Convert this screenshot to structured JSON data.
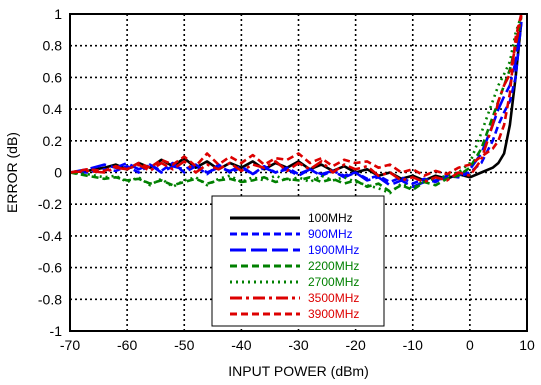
{
  "chart_data": {
    "type": "line",
    "title": "",
    "xlabel": "INPUT POWER (dBm)",
    "ylabel": "ERROR (dB)",
    "xlim": [
      -70,
      10
    ],
    "ylim": [
      -1,
      1
    ],
    "grid": true,
    "legend_position": "bottom-right",
    "x_ticks": [
      "-70",
      "-60",
      "-50",
      "-40",
      "-30",
      "-20",
      "-10",
      "0",
      "10"
    ],
    "y_ticks": [
      "1",
      "0.8",
      "0.6",
      "0.4",
      "0.2",
      "0",
      "-0.2",
      "-0.4",
      "-0.6",
      "-0.8",
      "-1"
    ],
    "series": [
      {
        "name": "100MHz",
        "color": "#000000",
        "dash": "solid",
        "x": [
          -70,
          -67,
          -64,
          -62,
          -60,
          -58,
          -56,
          -54,
          -52,
          -50,
          -48,
          -46,
          -44,
          -42,
          -40,
          -38,
          -36,
          -34,
          -32,
          -30,
          -28,
          -26,
          -24,
          -22,
          -20,
          -18,
          -16,
          -14,
          -12,
          -10,
          -8,
          -6,
          -4,
          -2,
          0,
          2,
          4,
          5,
          6,
          7,
          8,
          9
        ],
        "y": [
          0,
          0.01,
          0.03,
          0.05,
          0.02,
          0.06,
          0.03,
          0.08,
          0.04,
          0.09,
          0.03,
          0.07,
          0.02,
          0.06,
          0.03,
          0.07,
          0.02,
          0.06,
          0.03,
          0.07,
          0.02,
          0.05,
          0.01,
          0.04,
          0.0,
          0.02,
          -0.02,
          0.0,
          -0.04,
          -0.02,
          -0.05,
          -0.02,
          -0.04,
          -0.01,
          -0.03,
          0.0,
          0.03,
          0.06,
          0.12,
          0.3,
          0.6,
          0.95
        ]
      },
      {
        "name": "900MHz",
        "color": "#0000ff",
        "dash": "dash",
        "x": [
          -70,
          -67,
          -64,
          -62,
          -60,
          -58,
          -56,
          -54,
          -52,
          -50,
          -48,
          -46,
          -44,
          -42,
          -40,
          -38,
          -36,
          -34,
          -32,
          -30,
          -28,
          -26,
          -24,
          -22,
          -20,
          -18,
          -16,
          -14,
          -12,
          -10,
          -8,
          -6,
          -4,
          -2,
          0,
          2,
          4,
          5,
          6,
          7,
          8,
          9
        ],
        "y": [
          0,
          0.0,
          0.02,
          0.01,
          0.04,
          0.0,
          0.05,
          0.01,
          0.06,
          0.0,
          0.04,
          -0.01,
          0.05,
          0.0,
          0.03,
          -0.01,
          0.04,
          0.0,
          0.03,
          -0.01,
          0.02,
          -0.02,
          0.01,
          -0.02,
          0.0,
          -0.04,
          -0.02,
          -0.06,
          -0.03,
          -0.07,
          -0.04,
          -0.06,
          -0.02,
          -0.03,
          0.0,
          0.06,
          0.2,
          0.3,
          0.38,
          0.45,
          0.6,
          0.95
        ]
      },
      {
        "name": "1900MHz",
        "color": "#0000ff",
        "dash": "longdash",
        "x": [
          -70,
          -67,
          -64,
          -62,
          -60,
          -58,
          -56,
          -54,
          -52,
          -50,
          -48,
          -46,
          -44,
          -42,
          -40,
          -38,
          -36,
          -34,
          -32,
          -30,
          -28,
          -26,
          -24,
          -22,
          -20,
          -18,
          -16,
          -14,
          -12,
          -10,
          -8,
          -6,
          -4,
          -2,
          0,
          2,
          4,
          5,
          6,
          7,
          8,
          9
        ],
        "y": [
          0,
          0.02,
          0.05,
          0.03,
          0.06,
          0.02,
          0.05,
          0.0,
          0.04,
          0.02,
          0.05,
          0.0,
          0.03,
          0.01,
          0.04,
          -0.01,
          0.03,
          0.0,
          0.02,
          -0.02,
          0.02,
          -0.01,
          0.01,
          -0.03,
          0.0,
          -0.05,
          -0.03,
          -0.08,
          -0.05,
          -0.09,
          -0.06,
          -0.05,
          -0.03,
          -0.02,
          0.02,
          0.12,
          0.3,
          0.4,
          0.48,
          0.55,
          0.7,
          0.95
        ]
      },
      {
        "name": "2200MHz",
        "color": "#008000",
        "dash": "dash",
        "x": [
          -70,
          -67,
          -64,
          -62,
          -60,
          -58,
          -56,
          -54,
          -52,
          -50,
          -48,
          -46,
          -44,
          -42,
          -40,
          -38,
          -36,
          -34,
          -32,
          -30,
          -28,
          -26,
          -24,
          -22,
          -20,
          -18,
          -16,
          -14,
          -12,
          -10,
          -8,
          -6,
          -4,
          -2,
          0,
          2,
          4,
          5,
          6,
          7,
          8,
          9
        ],
        "y": [
          0,
          -0.02,
          -0.04,
          -0.03,
          -0.05,
          -0.04,
          -0.07,
          -0.05,
          -0.08,
          -0.06,
          -0.04,
          -0.07,
          -0.05,
          -0.04,
          -0.06,
          -0.05,
          -0.03,
          -0.06,
          -0.04,
          -0.05,
          -0.03,
          -0.06,
          -0.04,
          -0.07,
          -0.05,
          -0.09,
          -0.07,
          -0.12,
          -0.08,
          -0.11,
          -0.06,
          -0.08,
          -0.04,
          -0.02,
          0.03,
          0.15,
          0.35,
          0.45,
          0.55,
          0.65,
          0.8,
          0.98
        ]
      },
      {
        "name": "2700MHz",
        "color": "#008000",
        "dash": "dot",
        "x": [
          -70,
          -67,
          -64,
          -62,
          -60,
          -58,
          -56,
          -54,
          -52,
          -50,
          -48,
          -46,
          -44,
          -42,
          -40,
          -38,
          -36,
          -34,
          -32,
          -30,
          -28,
          -26,
          -24,
          -22,
          -20,
          -18,
          -16,
          -14,
          -12,
          -10,
          -8,
          -6,
          -4,
          -2,
          0,
          2,
          4,
          5,
          6,
          7,
          8,
          9
        ],
        "y": [
          0,
          -0.01,
          -0.03,
          -0.02,
          -0.06,
          -0.03,
          -0.08,
          -0.04,
          -0.09,
          -0.05,
          -0.03,
          -0.08,
          -0.04,
          -0.02,
          -0.06,
          -0.03,
          -0.05,
          -0.02,
          -0.05,
          -0.03,
          -0.06,
          -0.02,
          -0.05,
          -0.03,
          -0.06,
          -0.08,
          -0.1,
          -0.13,
          -0.07,
          -0.1,
          -0.05,
          -0.04,
          -0.02,
          0.0,
          0.06,
          0.25,
          0.45,
          0.55,
          0.62,
          0.7,
          0.88,
          0.99
        ]
      },
      {
        "name": "3500MHz",
        "color": "#dd0000",
        "dash": "dashdot",
        "x": [
          -70,
          -67,
          -64,
          -62,
          -60,
          -58,
          -56,
          -54,
          -52,
          -50,
          -48,
          -46,
          -44,
          -42,
          -40,
          -38,
          -36,
          -34,
          -32,
          -30,
          -28,
          -26,
          -24,
          -22,
          -20,
          -18,
          -16,
          -14,
          -12,
          -10,
          -8,
          -6,
          -4,
          -2,
          0,
          2,
          4,
          5,
          6,
          7,
          8,
          9
        ],
        "y": [
          0,
          0.01,
          0.0,
          0.03,
          0.02,
          0.05,
          0.01,
          0.06,
          0.02,
          0.07,
          0.0,
          0.05,
          0.02,
          0.06,
          0.01,
          0.05,
          0.03,
          0.07,
          0.01,
          0.06,
          0.02,
          0.07,
          0.0,
          0.05,
          0.02,
          0.04,
          -0.02,
          0.0,
          -0.05,
          -0.03,
          -0.06,
          -0.03,
          -0.05,
          0.0,
          -0.02,
          0.08,
          0.3,
          0.45,
          0.55,
          0.62,
          0.8,
          0.99
        ]
      },
      {
        "name": "3900MHz",
        "color": "#dd0000",
        "dash": "dash",
        "x": [
          -70,
          -67,
          -64,
          -62,
          -60,
          -58,
          -56,
          -54,
          -52,
          -50,
          -48,
          -46,
          -44,
          -42,
          -40,
          -38,
          -36,
          -34,
          -32,
          -30,
          -28,
          -26,
          -24,
          -22,
          -20,
          -18,
          -16,
          -14,
          -12,
          -10,
          -8,
          -6,
          -4,
          -2,
          0,
          2,
          4,
          5,
          6,
          7,
          8,
          9
        ],
        "y": [
          0,
          0.02,
          0.01,
          0.04,
          0.02,
          0.06,
          0.03,
          0.08,
          0.05,
          0.1,
          0.04,
          0.12,
          0.05,
          0.1,
          0.06,
          0.11,
          0.05,
          0.09,
          0.08,
          0.12,
          0.06,
          0.09,
          0.04,
          0.08,
          0.06,
          0.07,
          0.03,
          0.05,
          0.0,
          0.02,
          -0.02,
          0.01,
          -0.01,
          0.03,
          0.05,
          0.1,
          0.15,
          0.2,
          0.3,
          0.5,
          0.85,
          1.0
        ]
      }
    ]
  }
}
